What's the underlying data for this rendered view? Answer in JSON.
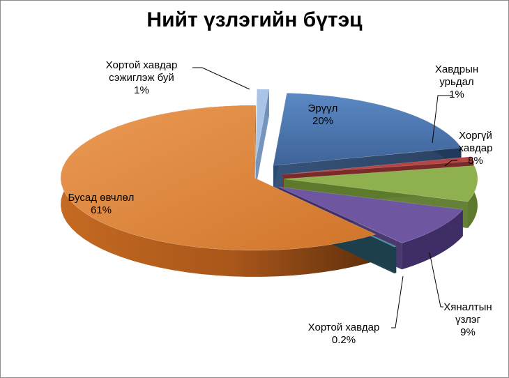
{
  "chart_data": {
    "type": "pie",
    "title": "Нийт үзлэгийн бүтэц",
    "three_d": true,
    "exploded": true,
    "legend": "none",
    "slices": [
      {
        "name": "Эрүүл",
        "value": 20,
        "percent_label": "20%",
        "color": "#4a76b0",
        "label_position": "inside"
      },
      {
        "name": "Хавдрын урьдал",
        "name_lines": [
          "Хавдрын",
          "урьдал"
        ],
        "value": 1,
        "percent_label": "1%",
        "color": "#b84543",
        "label_position": "outside"
      },
      {
        "name": "Хоргүй хавдар",
        "name_lines": [
          "Хоргүй",
          "хавдар"
        ],
        "value": 8,
        "percent_label": "8%",
        "color": "#8fb04e",
        "label_position": "outside"
      },
      {
        "name": "Хяналтын үзлэг",
        "name_lines": [
          "Хяналтын",
          "үзлэг"
        ],
        "value": 9,
        "percent_label": "9%",
        "color": "#6f56a0",
        "label_position": "outside"
      },
      {
        "name": "Хортой хавдар",
        "value": 0.2,
        "percent_label": "0.2%",
        "color": "#3c8fa6",
        "label_position": "outside"
      },
      {
        "name": "Бусад өвчлөл",
        "value": 61,
        "percent_label": "61%",
        "color": "#e0853a",
        "label_position": "inside"
      },
      {
        "name": "Хортой хавдар сэжиглэж буй",
        "name_lines": [
          "Хортой хавдар",
          "сэжиглэж буй"
        ],
        "value": 1,
        "percent_label": "1%",
        "color": "#a9c4e6",
        "label_position": "outside"
      }
    ]
  }
}
